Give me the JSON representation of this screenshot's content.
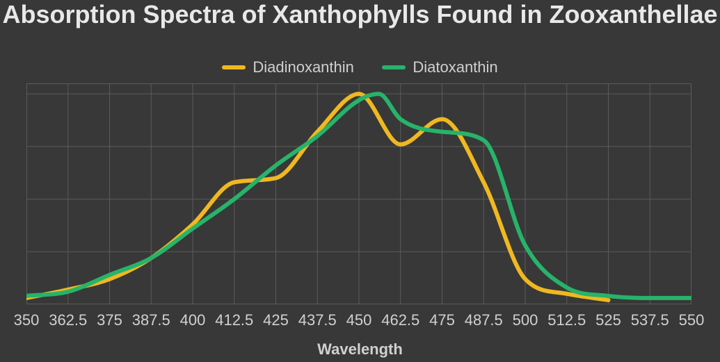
{
  "chart": {
    "type": "line",
    "title": "Absorption Spectra of Xanthophylls Found in Zooxanthellae",
    "title_fontsize": 36,
    "title_color": "#e8e8e8",
    "background_color": "#383838",
    "plot_background_color": "#383838",
    "grid_color": "#5b5b5b",
    "grid_linewidth": 1,
    "plot_border_color": "#5b5b5b",
    "smoothing": "monotone",
    "xaxis": {
      "label": "Wavelength",
      "label_fontsize": 22,
      "label_color": "#d0d0d0",
      "ticks": [
        350,
        362.5,
        375,
        387.5,
        400,
        412.5,
        425,
        437.5,
        450,
        462.5,
        475,
        487.5,
        500,
        512.5,
        525,
        537.5,
        550
      ],
      "tick_fontsize": 22,
      "tick_color": "#d0d0d0",
      "xlim": [
        350,
        550
      ]
    },
    "yaxis": {
      "show_ticks": false,
      "ylim": [
        0,
        1.05
      ],
      "gridlines": [
        0,
        0.25,
        0.5,
        0.75,
        1.0
      ]
    },
    "legend": {
      "position": "top-center",
      "items": [
        {
          "label": "Diadinoxanthin",
          "color": "#f0b820"
        },
        {
          "label": "Diatoxanthin",
          "color": "#27b36a"
        }
      ],
      "fontsize": 22,
      "swatch_width": 34,
      "swatch_height": 6
    },
    "line_width": 6,
    "series": [
      {
        "name": "Diadinoxanthin",
        "color": "#f0b820",
        "x": [
          350,
          362.5,
          375,
          387.5,
          400,
          412.5,
          425,
          437.5,
          450,
          462.5,
          475,
          487.5,
          500,
          512.5,
          525
        ],
        "y": [
          0.03,
          0.07,
          0.12,
          0.22,
          0.38,
          0.58,
          0.6,
          0.82,
          1.0,
          0.76,
          0.88,
          0.58,
          0.12,
          0.05,
          0.02
        ]
      },
      {
        "name": "Diatoxanthin",
        "color": "#27b36a",
        "x": [
          350,
          362.5,
          375,
          387.5,
          400,
          412.5,
          425,
          437.5,
          450,
          456,
          462.5,
          475,
          487.5,
          500,
          512.5,
          525,
          537.5,
          550
        ],
        "y": [
          0.04,
          0.06,
          0.14,
          0.22,
          0.36,
          0.5,
          0.66,
          0.8,
          0.97,
          1.0,
          0.88,
          0.82,
          0.78,
          0.28,
          0.08,
          0.04,
          0.03,
          0.03
        ]
      }
    ]
  }
}
